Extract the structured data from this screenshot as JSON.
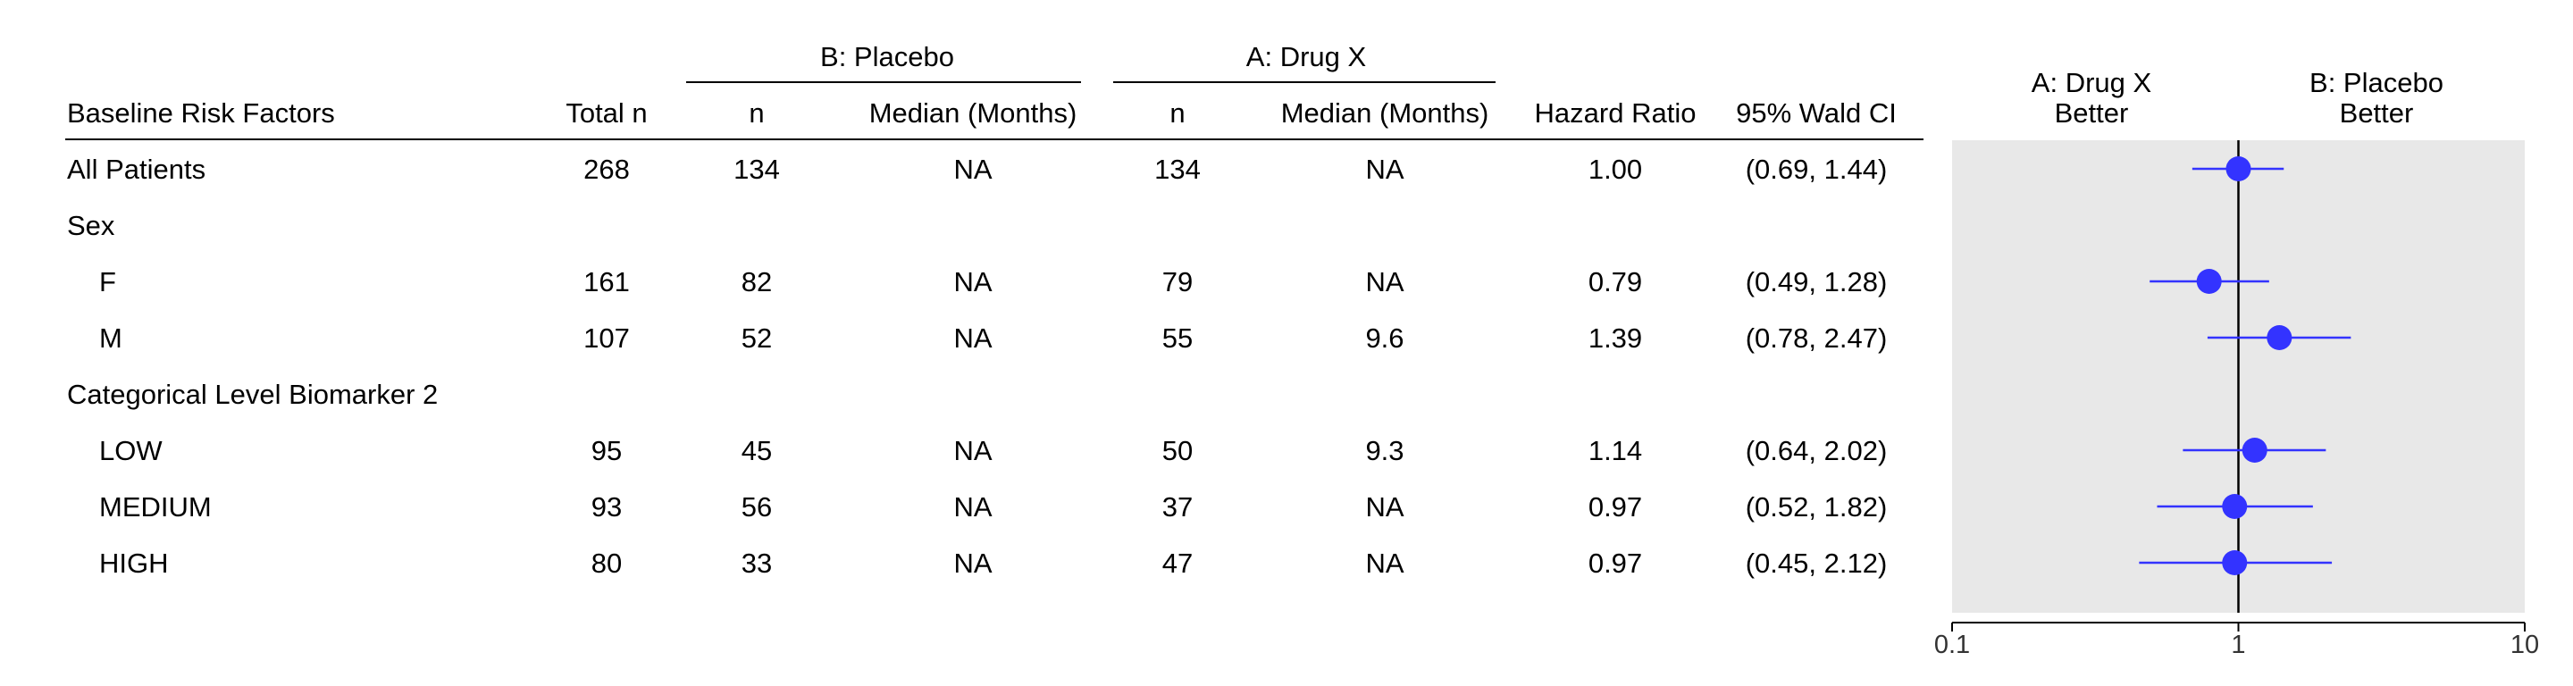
{
  "table": {
    "group_headers": {
      "placebo": "B: Placebo",
      "drug": "A: Drug X"
    },
    "columns": {
      "factor": "Baseline Risk Factors",
      "total_n": "Total n",
      "placebo_n": "n",
      "placebo_median": "Median (Months)",
      "drug_n": "n",
      "drug_median": "Median (Months)",
      "hr": "Hazard Ratio",
      "ci": "95% Wald CI"
    },
    "rows": [
      {
        "label": "All Patients",
        "indent": false,
        "total_n": "268",
        "placebo_n": "134",
        "placebo_median": "NA",
        "drug_n": "134",
        "drug_median": "NA",
        "hr": "1.00",
        "ci": "(0.69, 1.44)"
      },
      {
        "label": "Sex",
        "indent": false,
        "total_n": "",
        "placebo_n": "",
        "placebo_median": "",
        "drug_n": "",
        "drug_median": "",
        "hr": "",
        "ci": ""
      },
      {
        "label": "F",
        "indent": true,
        "total_n": "161",
        "placebo_n": "82",
        "placebo_median": "NA",
        "drug_n": "79",
        "drug_median": "NA",
        "hr": "0.79",
        "ci": "(0.49, 1.28)"
      },
      {
        "label": "M",
        "indent": true,
        "total_n": "107",
        "placebo_n": "52",
        "placebo_median": "NA",
        "drug_n": "55",
        "drug_median": "9.6",
        "hr": "1.39",
        "ci": "(0.78, 2.47)"
      },
      {
        "label": "Categorical Level Biomarker 2",
        "indent": false,
        "total_n": "",
        "placebo_n": "",
        "placebo_median": "",
        "drug_n": "",
        "drug_median": "",
        "hr": "",
        "ci": ""
      },
      {
        "label": "LOW",
        "indent": true,
        "total_n": "95",
        "placebo_n": "45",
        "placebo_median": "NA",
        "drug_n": "50",
        "drug_median": "9.3",
        "hr": "1.14",
        "ci": "(0.64, 2.02)"
      },
      {
        "label": "MEDIUM",
        "indent": true,
        "total_n": "93",
        "placebo_n": "56",
        "placebo_median": "NA",
        "drug_n": "37",
        "drug_median": "NA",
        "hr": "0.97",
        "ci": "(0.52, 1.82)"
      },
      {
        "label": "HIGH",
        "indent": true,
        "total_n": "80",
        "placebo_n": "33",
        "placebo_median": "NA",
        "drug_n": "47",
        "drug_median": "NA",
        "hr": "0.97",
        "ci": "(0.45, 2.12)"
      }
    ]
  },
  "plot": {
    "left_header": [
      "A: Drug X",
      "Better"
    ],
    "right_header": [
      "B: Placebo",
      "Better"
    ]
  },
  "colors": {
    "point": "#3333FF",
    "panel": "#E8E8E8",
    "axis": "#000000"
  },
  "chart_data": {
    "type": "scatter",
    "subtype": "forest",
    "x_scale": "log",
    "xlim": [
      0.1,
      10
    ],
    "reference_line": 1,
    "x_ticks": [
      "0.1",
      "1",
      "10"
    ],
    "grid": false,
    "series": [
      {
        "points": [
          {
            "row": "All Patients",
            "hr": 1.0,
            "lo": 0.69,
            "hi": 1.44
          },
          {
            "row": "Sex",
            "hr": null,
            "lo": null,
            "hi": null
          },
          {
            "row": "F",
            "hr": 0.79,
            "lo": 0.49,
            "hi": 1.28
          },
          {
            "row": "M",
            "hr": 1.39,
            "lo": 0.78,
            "hi": 2.47
          },
          {
            "row": "Categorical Level Biomarker 2",
            "hr": null,
            "lo": null,
            "hi": null
          },
          {
            "row": "LOW",
            "hr": 1.14,
            "lo": 0.64,
            "hi": 2.02
          },
          {
            "row": "MEDIUM",
            "hr": 0.97,
            "lo": 0.52,
            "hi": 1.82
          },
          {
            "row": "HIGH",
            "hr": 0.97,
            "lo": 0.45,
            "hi": 2.12
          }
        ]
      }
    ]
  }
}
